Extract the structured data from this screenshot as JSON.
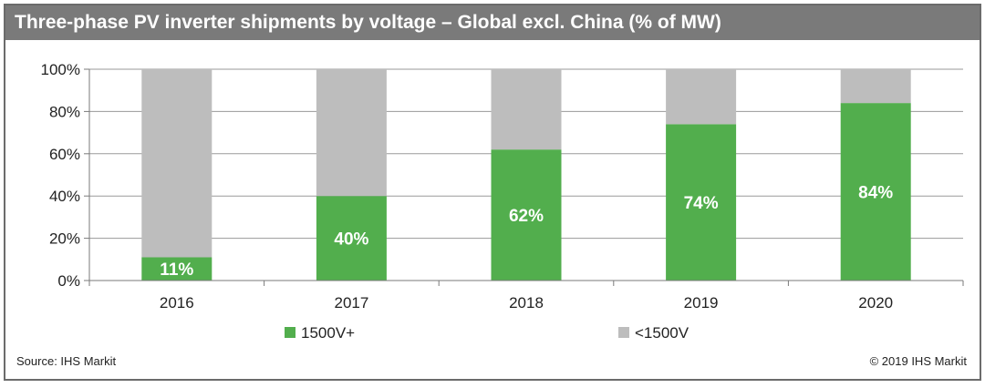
{
  "title": "Three-phase PV inverter shipments by voltage – Global excl. China (% of MW)",
  "source": "Source: IHS Markit",
  "copyright": "© 2019 IHS Markit",
  "colors": {
    "series_1500_plus": "#52ae4d",
    "series_below_1500": "#bdbdbd",
    "title_bar": "#7a7a7a"
  },
  "chart_data": {
    "type": "bar",
    "stacked": true,
    "title": "Three-phase PV inverter shipments by voltage – Global excl. China (% of MW)",
    "xlabel": "",
    "ylabel": "",
    "categories": [
      "2016",
      "2017",
      "2018",
      "2019",
      "2020"
    ],
    "ylim": [
      0,
      100
    ],
    "yticks": [
      "0%",
      "20%",
      "40%",
      "60%",
      "80%",
      "100%"
    ],
    "grid": true,
    "legend_position": "bottom",
    "series": [
      {
        "name": "1500V+",
        "values": [
          11,
          40,
          62,
          74,
          84
        ],
        "labels": [
          "11%",
          "40%",
          "62%",
          "74%",
          "84%"
        ]
      },
      {
        "name": "<1500V",
        "values": [
          89,
          60,
          38,
          26,
          16
        ]
      }
    ]
  }
}
